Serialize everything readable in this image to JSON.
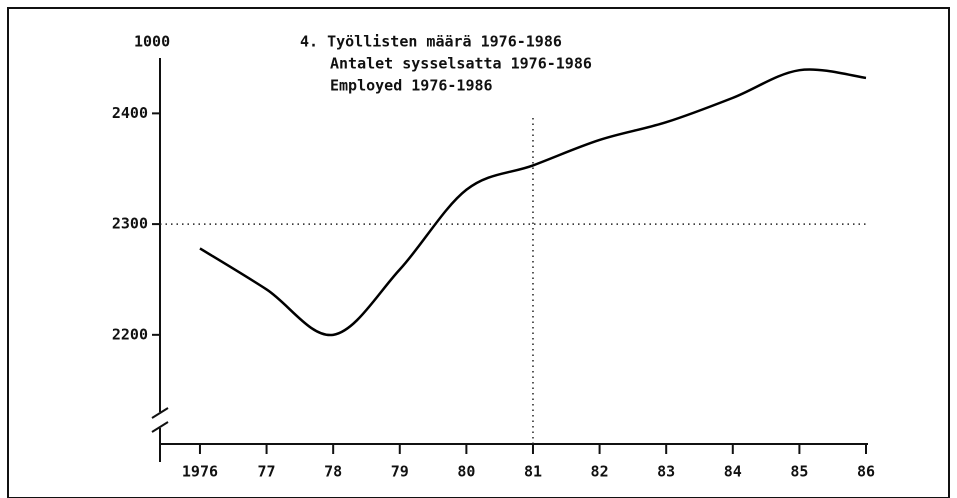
{
  "chart_data": {
    "type": "line",
    "title": [
      "4. Työllisten määrä 1976-1986",
      "Antalet sysselsatta 1976-1986",
      "Employed 1976-1986"
    ],
    "y_axis_label": "1000",
    "x": [
      1976,
      1977,
      1978,
      1979,
      1980,
      1981,
      1982,
      1983,
      1984,
      1985,
      1986
    ],
    "series": [
      {
        "color": "#000000",
        "values": [
          2278,
          2241,
          2200,
          2259,
          2331,
          2353,
          2376,
          2392,
          2414,
          2439,
          2432
        ]
      }
    ],
    "xlim": [
      1975.4,
      1986
    ],
    "xticks": [
      {
        "value": 1976,
        "label": "1976"
      },
      {
        "value": 1977,
        "label": "77"
      },
      {
        "value": 1978,
        "label": "78"
      },
      {
        "value": 1979,
        "label": "79"
      },
      {
        "value": 1980,
        "label": "80"
      },
      {
        "value": 1981,
        "label": "81"
      },
      {
        "value": 1982,
        "label": "82"
      },
      {
        "value": 1983,
        "label": "83"
      },
      {
        "value": 1984,
        "label": "84"
      },
      {
        "value": 1985,
        "label": "85"
      },
      {
        "value": 1986,
        "label": "86"
      }
    ],
    "ylim": [
      2096,
      2450
    ],
    "yticks": [
      2200,
      2300,
      2400
    ],
    "reference_lines": {
      "x": 1981,
      "y": 2300
    }
  }
}
